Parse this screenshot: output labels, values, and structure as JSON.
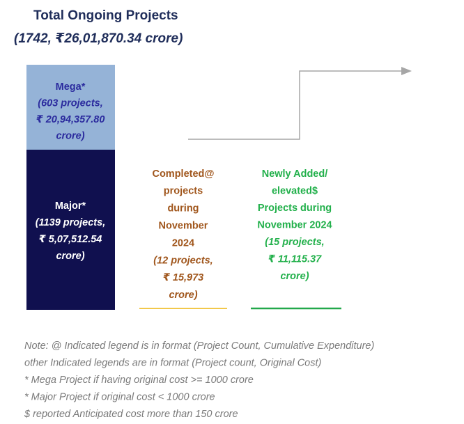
{
  "title": "Total Ongoing Projects",
  "subtitle": "(1742, ₹26,01,870.34  crore)",
  "mega": {
    "lines": [
      "Mega*",
      "(603 projects,",
      "₹ 20,94,357.80",
      "crore)"
    ]
  },
  "major": {
    "lines": [
      "Major*",
      "(1139 projects,",
      "₹ 5,07,512.54",
      "crore)"
    ]
  },
  "completed": {
    "lines": [
      "Completed@",
      "projects",
      "during",
      "November",
      "2024",
      "(12  projects,",
      "₹  15,973",
      "crore)"
    ]
  },
  "newly_added": {
    "lines": [
      "Newly Added/",
      "elevated$",
      "Projects during",
      "November 2024",
      "(15 projects,",
      "₹ 11,115.37",
      "crore)"
    ]
  },
  "notes": [
    "Note: @ Indicated legend is in format (Project Count, Cumulative Expenditure)",
    "other Indicated legends are in format (Project count, Original Cost)",
    "* Mega Project if having original cost >=  1000 crore",
    "* Major Project if original cost <  1000 crore",
    "$ reported Anticipated cost more than 150 crore"
  ]
}
